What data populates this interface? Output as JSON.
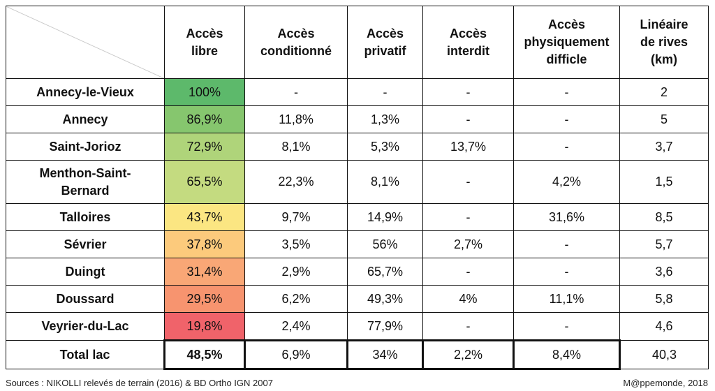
{
  "table": {
    "header": [
      "",
      "Accès\nlibre",
      "Accès\nconditionné",
      "Accès\nprivatif",
      "Accès\ninterdit",
      "Accès\nphysiquement\ndifficle",
      "Linéaire\nde rives\n(km)"
    ],
    "rows": [
      [
        "Annecy-le-Vieux",
        "100%",
        "-",
        "-",
        "-",
        "-",
        "2"
      ],
      [
        "Annecy",
        "86,9%",
        "11,8%",
        "1,3%",
        "-",
        "-",
        "5"
      ],
      [
        "Saint-Jorioz",
        "72,9%",
        "8,1%",
        "5,3%",
        "13,7%",
        "-",
        "3,7"
      ],
      [
        "Menthon-Saint-\nBernard",
        "65,5%",
        "22,3%",
        "8,1%",
        "-",
        "4,2%",
        "1,5"
      ],
      [
        "Talloires",
        "43,7%",
        "9,7%",
        "14,9%",
        "-",
        "31,6%",
        "8,5"
      ],
      [
        "Sévrier",
        "37,8%",
        "3,5%",
        "56%",
        "2,7%",
        "-",
        "5,7"
      ],
      [
        "Duingt",
        "31,4%",
        "2,9%",
        "65,7%",
        "-",
        "-",
        "3,6"
      ],
      [
        "Doussard",
        "29,5%",
        "6,2%",
        "49,3%",
        "4%",
        "11,1%",
        "5,8"
      ],
      [
        "Veyrier-du-Lac",
        "19,8%",
        "2,4%",
        "77,9%",
        "-",
        "-",
        "4,6"
      ]
    ],
    "highlight_colors": [
      "#5db96b",
      "#86c66e",
      "#afd47a",
      "#c4db80",
      "#fbe682",
      "#fcca7c",
      "#f9a776",
      "#f7946f",
      "#f0636a"
    ],
    "total": [
      "Total lac",
      "48,5%",
      "6,9%",
      "34%",
      "2,2%",
      "8,4%",
      "40,3"
    ]
  },
  "sources": "Sources : NIKOLLI relevés de terrain (2016) & BD Ortho IGN 2007",
  "credit": "M@ppemonde, 2018"
}
